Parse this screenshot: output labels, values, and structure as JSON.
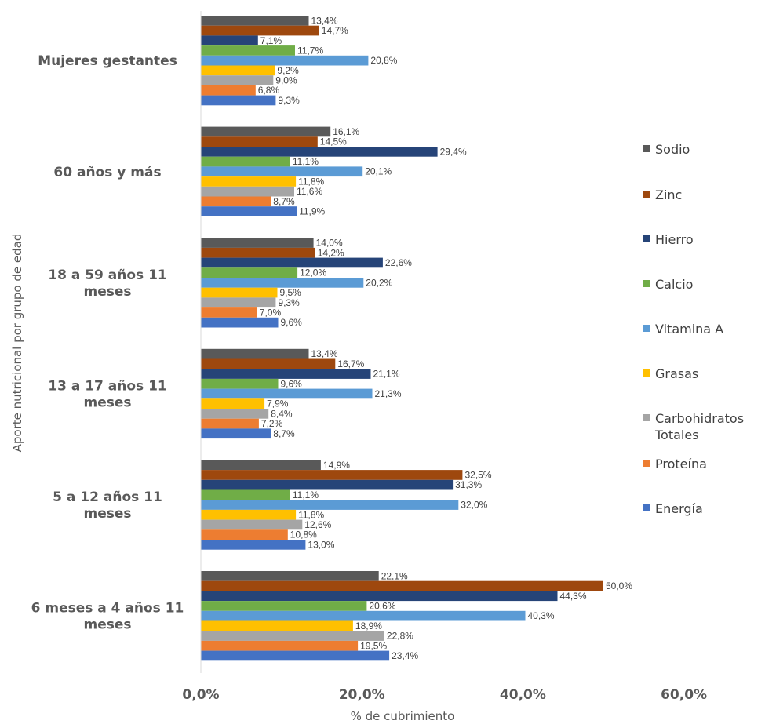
{
  "chart_data": {
    "type": "bar",
    "orientation": "horizontal",
    "xlabel": "% de cubrimiento",
    "ylabel": "Aporte nutricional por grupo de edad",
    "xlim": [
      0,
      60
    ],
    "xticks": [
      "0,0%",
      "20,0%",
      "40,0%",
      "60,0%"
    ],
    "legend_position": "right",
    "categories": [
      "Mujeres gestantes",
      "60 años y más",
      "18 a 59 años 11 meses",
      "13 a 17 años 11 meses",
      "5 a 12 años 11 meses",
      "6 meses a 4 años 11 meses"
    ],
    "category_lines": [
      [
        "Mujeres gestantes"
      ],
      [
        "60 años y más"
      ],
      [
        "18 a 59 años 11",
        "meses"
      ],
      [
        "13 a 17 años 11",
        "meses"
      ],
      [
        "5 a 12 años 11",
        "meses"
      ],
      [
        "6 meses a 4 años 11",
        "meses"
      ]
    ],
    "series": [
      {
        "name": "Sodio",
        "color": "#595959",
        "values": [
          13.4,
          16.1,
          14.0,
          13.4,
          14.9,
          22.1
        ],
        "labels": [
          "13,4%",
          "16,1%",
          "14,0%",
          "13,4%",
          "14,9%",
          "22,1%"
        ]
      },
      {
        "name": "Zinc",
        "color": "#9E480E",
        "values": [
          14.7,
          14.5,
          14.2,
          16.7,
          32.5,
          50.0
        ],
        "labels": [
          "14,7%",
          "14,5%",
          "14,2%",
          "16,7%",
          "32,5%",
          "50,0%"
        ]
      },
      {
        "name": "Hierro",
        "color": "#264478",
        "values": [
          7.1,
          29.4,
          22.6,
          21.1,
          31.3,
          44.3
        ],
        "labels": [
          "7,1%",
          "29,4%",
          "22,6%",
          "21,1%",
          "31,3%",
          "44,3%"
        ]
      },
      {
        "name": "Calcio",
        "color": "#70AD47",
        "values": [
          11.7,
          11.1,
          12.0,
          9.6,
          11.1,
          20.6
        ],
        "labels": [
          "11,7%",
          "11,1%",
          "12,0%",
          "9,6%",
          "11,1%",
          "20,6%"
        ]
      },
      {
        "name": "Vitamina A",
        "color": "#5B9BD5",
        "values": [
          20.8,
          20.1,
          20.2,
          21.3,
          32.0,
          40.3
        ],
        "labels": [
          "20,8%",
          "20,1%",
          "20,2%",
          "21,3%",
          "32,0%",
          "40,3%"
        ]
      },
      {
        "name": "Grasas",
        "color": "#FFC000",
        "values": [
          9.2,
          11.8,
          9.5,
          7.9,
          11.8,
          18.9
        ],
        "labels": [
          "9,2%",
          "11,8%",
          "9,5%",
          "7,9%",
          "11,8%",
          "18,9%"
        ]
      },
      {
        "name": "Carbohidratos Totales",
        "legend_lines": [
          "Carbohidratos",
          "Totales"
        ],
        "color": "#A5A5A5",
        "values": [
          9.0,
          11.6,
          9.3,
          8.4,
          12.6,
          22.8
        ],
        "labels": [
          "9,0%",
          "11,6%",
          "9,3%",
          "8,4%",
          "12,6%",
          "22,8%"
        ]
      },
      {
        "name": "Proteína",
        "color": "#ED7D31",
        "values": [
          6.8,
          8.7,
          7.0,
          7.2,
          10.8,
          19.5
        ],
        "labels": [
          "6,8%",
          "8,7%",
          "7,0%",
          "7,2%",
          "10,8%",
          "19,5%"
        ]
      },
      {
        "name": "Energía",
        "color": "#4472C4",
        "values": [
          9.3,
          11.9,
          9.6,
          8.7,
          13.0,
          23.4
        ],
        "labels": [
          "9,3%",
          "11,9%",
          "9,6%",
          "8,7%",
          "13,0%",
          "23,4%"
        ]
      }
    ]
  }
}
